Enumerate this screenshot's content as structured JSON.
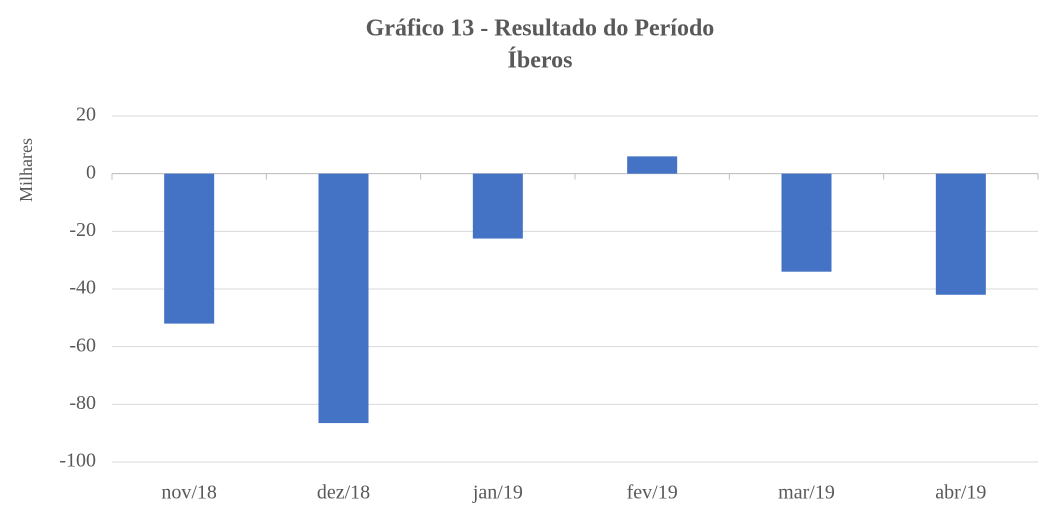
{
  "chart_data": {
    "type": "bar",
    "title": "Gráfico 13 - Resultado do Período",
    "subtitle": "Íberos",
    "y_label": "Milhares",
    "categories": [
      "nov/18",
      "dez/18",
      "jan/19",
      "fev/19",
      "mar/19",
      "abr/19"
    ],
    "values": [
      -52,
      -86.5,
      -22.5,
      6,
      -34,
      -42
    ],
    "color": "#4472c4",
    "ylim": [
      -100,
      20
    ],
    "yticks": [
      20,
      0,
      -20,
      -40,
      -60,
      -80,
      -100
    ],
    "grid": true
  }
}
